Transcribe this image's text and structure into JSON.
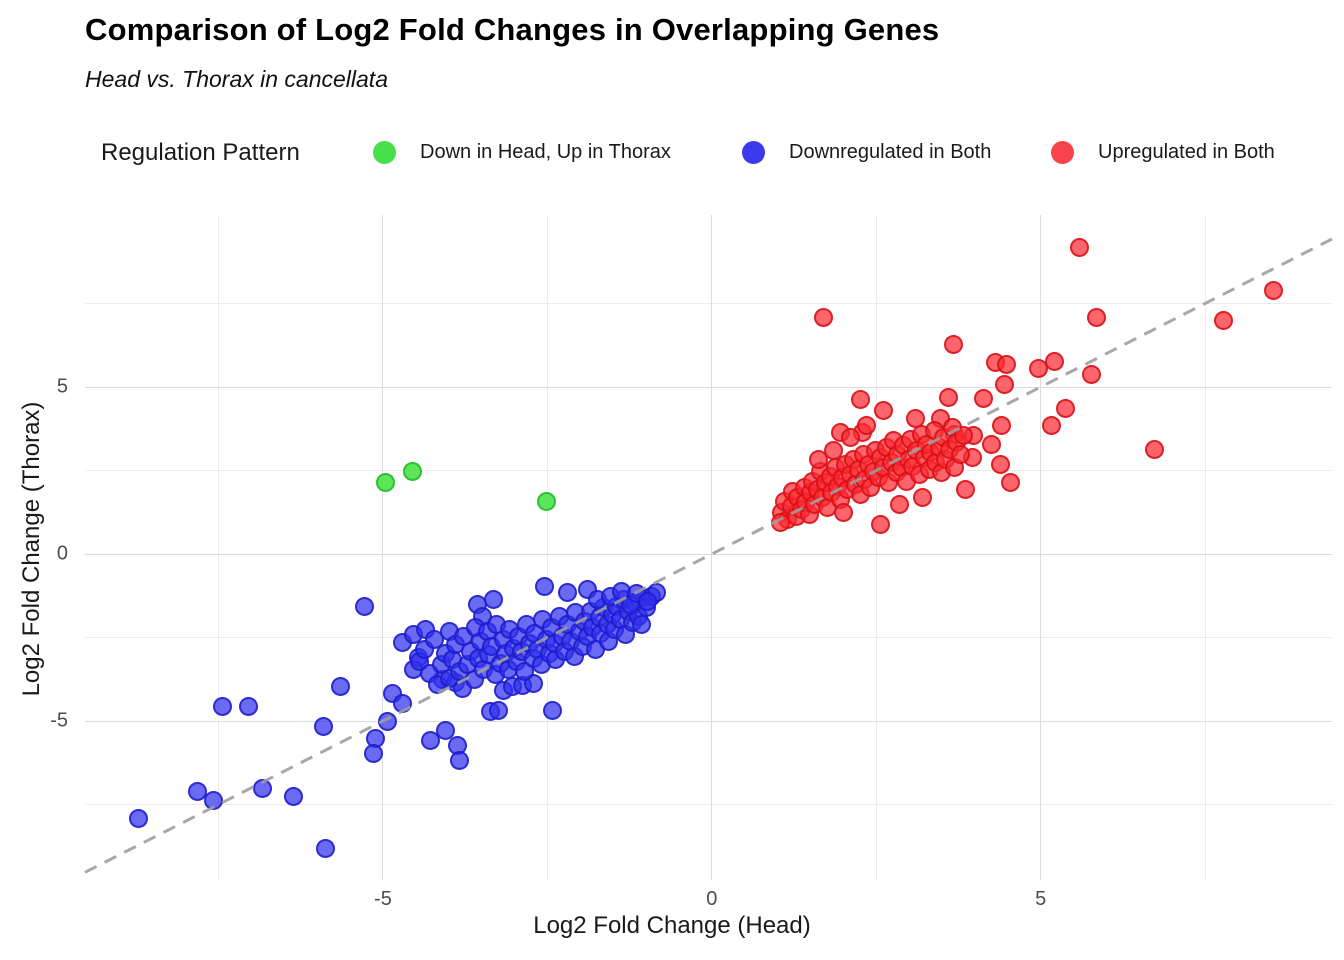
{
  "title": "Comparison of Log2 Fold Changes in Overlapping Genes",
  "subtitle": "Head vs. Thorax in cancellata",
  "legend": {
    "title": "Regulation Pattern",
    "items": [
      {
        "label": "Down in Head, Up in Thorax",
        "color": "#45e04a"
      },
      {
        "label": "Downregulated in Both",
        "color": "#3a3aec"
      },
      {
        "label": "Upregulated in Both",
        "color": "#f8434a"
      }
    ]
  },
  "chart_data": {
    "type": "scatter",
    "title": "Comparison of Log2 Fold Changes in Overlapping Genes",
    "subtitle": "Head vs. Thorax in cancellata",
    "xlabel": "Log2 Fold Change (Head)",
    "ylabel": "Log2 Fold Change (Thorax)",
    "xlim": [
      -9.53,
      9.43
    ],
    "ylim": [
      -9.76,
      10.15
    ],
    "grid": "on",
    "legend_position": "top",
    "x_ticks_major": [
      -5,
      0,
      5
    ],
    "x_tick_labels": [
      "-5",
      "0",
      "5"
    ],
    "x_ticks_minor": [
      -7.5,
      -2.5,
      2.5,
      7.5
    ],
    "y_ticks_major": [
      5,
      0,
      -5
    ],
    "y_tick_labels": [
      "5",
      "0",
      "-5"
    ],
    "y_ticks_minor": [
      7.5,
      2.5,
      -2.5,
      -7.5
    ],
    "reference_line": {
      "type": "identity",
      "slope": 1,
      "intercept": 0,
      "style": "dashed",
      "color": "#9e9e9e"
    },
    "colors": {
      "major_grid": "#dcdcdc",
      "minor_grid": "#ececec",
      "tick_text": "#4d4d4d"
    },
    "series": [
      {
        "name": "Down in Head, Up in Thorax",
        "fill": "rgba(74,227,74,0.9)",
        "stroke": "rgba(40,190,45,0.95)",
        "points": [
          [
            -4.97,
            2.15
          ],
          [
            -4.56,
            2.5
          ],
          [
            -2.52,
            1.6
          ]
        ]
      },
      {
        "name": "Downregulated in Both",
        "fill": "rgba(48,48,238,0.72)",
        "stroke": "rgba(26,26,200,0.8)",
        "points": [
          [
            -8.72,
            -7.9
          ],
          [
            -7.83,
            -7.1
          ],
          [
            -7.58,
            -7.37
          ],
          [
            -7.45,
            -4.55
          ],
          [
            -7.05,
            -4.55
          ],
          [
            -6.84,
            -7.0
          ],
          [
            -6.37,
            -7.25
          ],
          [
            -5.91,
            -5.15
          ],
          [
            -5.88,
            -8.8
          ],
          [
            -5.65,
            -3.95
          ],
          [
            -5.29,
            -1.57
          ],
          [
            -5.12,
            -5.51
          ],
          [
            -5.15,
            -5.96
          ],
          [
            -4.94,
            -5.0
          ],
          [
            -4.86,
            -4.16
          ],
          [
            -4.71,
            -4.46
          ],
          [
            -4.29,
            -5.57
          ],
          [
            -4.06,
            -5.27
          ],
          [
            -3.88,
            -5.72
          ],
          [
            -3.85,
            -6.17
          ],
          [
            -2.43,
            -4.67
          ],
          [
            -4.71,
            -2.62
          ],
          [
            -4.54,
            -2.38
          ],
          [
            -4.36,
            -2.26
          ],
          [
            -4.47,
            -3.07
          ],
          [
            -4.54,
            -3.43
          ],
          [
            -4.1,
            -3.73
          ],
          [
            -3.9,
            -3.83
          ],
          [
            -3.57,
            -1.51
          ],
          [
            -3.33,
            -1.36
          ],
          [
            -3.5,
            -1.87
          ],
          [
            -3.37,
            -4.7
          ],
          [
            -3.25,
            -4.67
          ],
          [
            -3.18,
            -4.07
          ],
          [
            -3.04,
            -3.95
          ],
          [
            -2.89,
            -3.92
          ],
          [
            -2.72,
            -3.86
          ],
          [
            -4.45,
            -3.2
          ],
          [
            -4.38,
            -2.85
          ],
          [
            -4.3,
            -3.55
          ],
          [
            -4.22,
            -2.55
          ],
          [
            -4.18,
            -3.9
          ],
          [
            -4.12,
            -3.3
          ],
          [
            -4.05,
            -2.95
          ],
          [
            -4.0,
            -3.7
          ],
          [
            -4.0,
            -2.3
          ],
          [
            -3.95,
            -3.15
          ],
          [
            -3.9,
            -2.7
          ],
          [
            -3.85,
            -3.5
          ],
          [
            -3.8,
            -4.0
          ],
          [
            -3.78,
            -2.45
          ],
          [
            -3.72,
            -3.3
          ],
          [
            -3.68,
            -2.9
          ],
          [
            -3.62,
            -3.75
          ],
          [
            -3.6,
            -2.2
          ],
          [
            -3.55,
            -3.1
          ],
          [
            -3.52,
            -2.6
          ],
          [
            -3.48,
            -3.45
          ],
          [
            -3.42,
            -2.3
          ],
          [
            -3.4,
            -3.0
          ],
          [
            -3.35,
            -2.75
          ],
          [
            -3.3,
            -3.6
          ],
          [
            -3.28,
            -2.1
          ],
          [
            -3.22,
            -3.25
          ],
          [
            -3.18,
            -2.55
          ],
          [
            -3.15,
            -2.95
          ],
          [
            -3.1,
            -3.45
          ],
          [
            -3.08,
            -2.25
          ],
          [
            -3.02,
            -2.8
          ],
          [
            -2.98,
            -3.2
          ],
          [
            -2.95,
            -2.45
          ],
          [
            -2.9,
            -2.9
          ],
          [
            -2.85,
            -3.5
          ],
          [
            -2.82,
            -2.1
          ],
          [
            -2.78,
            -2.65
          ],
          [
            -2.72,
            -3.1
          ],
          [
            -2.7,
            -2.35
          ],
          [
            -2.65,
            -2.85
          ],
          [
            -2.6,
            -3.3
          ],
          [
            -2.58,
            -1.95
          ],
          [
            -2.52,
            -2.55
          ],
          [
            -2.48,
            -2.95
          ],
          [
            -2.45,
            -2.2
          ],
          [
            -2.4,
            -2.65
          ],
          [
            -2.38,
            -3.15
          ],
          [
            -2.32,
            -1.85
          ],
          [
            -2.28,
            -2.45
          ],
          [
            -2.25,
            -2.9
          ],
          [
            -2.2,
            -2.1
          ],
          [
            -2.15,
            -2.6
          ],
          [
            -2.1,
            -3.05
          ],
          [
            -2.08,
            -1.75
          ],
          [
            -2.02,
            -2.3
          ],
          [
            -1.98,
            -2.75
          ],
          [
            -1.95,
            -2.0
          ],
          [
            -1.9,
            -2.45
          ],
          [
            -1.85,
            -1.7
          ],
          [
            -1.82,
            -2.2
          ],
          [
            -1.78,
            -2.85
          ],
          [
            -1.72,
            -1.9
          ],
          [
            -1.7,
            -2.35
          ],
          [
            -1.65,
            -1.6
          ],
          [
            -1.6,
            -2.1
          ],
          [
            -1.58,
            -2.6
          ],
          [
            -1.52,
            -1.8
          ],
          [
            -1.48,
            -2.25
          ],
          [
            -1.45,
            -1.55
          ],
          [
            -1.4,
            -1.95
          ],
          [
            -1.35,
            -1.35
          ],
          [
            -1.32,
            -2.4
          ],
          [
            -1.28,
            -1.7
          ],
          [
            -1.22,
            -2.05
          ],
          [
            -1.18,
            -1.45
          ],
          [
            -1.12,
            -1.85
          ],
          [
            -1.05,
            -1.3
          ],
          [
            -1.0,
            -1.6
          ],
          [
            -0.92,
            -1.25
          ],
          [
            -2.55,
            -0.95
          ],
          [
            -1.9,
            -1.05
          ],
          [
            -2.2,
            -1.15
          ],
          [
            -0.85,
            -1.15
          ],
          [
            -1.75,
            -1.35
          ],
          [
            -1.55,
            -1.25
          ],
          [
            -1.38,
            -1.12
          ],
          [
            -1.25,
            -1.5
          ],
          [
            -1.15,
            -1.18
          ],
          [
            -1.08,
            -2.1
          ],
          [
            -0.98,
            -1.4
          ]
        ]
      },
      {
        "name": "Upregulated in Both",
        "fill": "rgba(251,42,50,0.72)",
        "stroke": "rgba(214,12,20,0.8)",
        "points": [
          [
            5.58,
            9.2
          ],
          [
            8.53,
            7.9
          ],
          [
            7.77,
            7.0
          ],
          [
            5.84,
            7.1
          ],
          [
            1.69,
            7.1
          ],
          [
            3.66,
            6.3
          ],
          [
            4.3,
            5.75
          ],
          [
            4.48,
            5.7
          ],
          [
            4.96,
            5.57
          ],
          [
            5.21,
            5.78
          ],
          [
            5.77,
            5.4
          ],
          [
            4.45,
            5.1
          ],
          [
            3.59,
            4.7
          ],
          [
            4.12,
            4.67
          ],
          [
            2.26,
            4.63
          ],
          [
            5.37,
            4.37
          ],
          [
            5.16,
            3.85
          ],
          [
            3.47,
            4.07
          ],
          [
            3.09,
            4.06
          ],
          [
            2.6,
            4.3
          ],
          [
            3.69,
            3.6
          ],
          [
            3.97,
            3.55
          ],
          [
            4.25,
            3.3
          ],
          [
            4.4,
            3.85
          ],
          [
            6.72,
            3.13
          ],
          [
            1.95,
            3.65
          ],
          [
            2.29,
            3.64
          ],
          [
            4.38,
            2.7
          ],
          [
            4.53,
            2.15
          ],
          [
            3.85,
            1.95
          ],
          [
            3.95,
            2.9
          ],
          [
            1.05,
            1.25
          ],
          [
            1.1,
            1.6
          ],
          [
            1.15,
            1.05
          ],
          [
            1.2,
            1.45
          ],
          [
            1.22,
            1.9
          ],
          [
            1.28,
            1.15
          ],
          [
            1.3,
            1.7
          ],
          [
            1.35,
            1.35
          ],
          [
            1.4,
            2.0
          ],
          [
            1.42,
            1.55
          ],
          [
            1.48,
            1.2
          ],
          [
            1.5,
            1.85
          ],
          [
            1.52,
            2.2
          ],
          [
            1.55,
            1.5
          ],
          [
            1.6,
            1.95
          ],
          [
            1.65,
            2.5
          ],
          [
            1.68,
            1.7
          ],
          [
            1.72,
            2.15
          ],
          [
            1.75,
            1.4
          ],
          [
            1.8,
            2.35
          ],
          [
            1.82,
            1.85
          ],
          [
            1.88,
            2.6
          ],
          [
            1.9,
            2.05
          ],
          [
            1.95,
            1.65
          ],
          [
            1.98,
            2.3
          ],
          [
            2.02,
            2.7
          ],
          [
            2.05,
            1.95
          ],
          [
            2.1,
            2.4
          ],
          [
            2.15,
            2.85
          ],
          [
            2.18,
            2.1
          ],
          [
            2.22,
            2.55
          ],
          [
            2.25,
            1.8
          ],
          [
            2.3,
            3.0
          ],
          [
            2.32,
            2.25
          ],
          [
            2.38,
            2.7
          ],
          [
            2.4,
            2.0
          ],
          [
            2.45,
            2.5
          ],
          [
            2.48,
            3.1
          ],
          [
            2.52,
            2.3
          ],
          [
            2.55,
            2.9
          ],
          [
            2.6,
            2.6
          ],
          [
            2.65,
            3.2
          ],
          [
            2.68,
            2.15
          ],
          [
            2.72,
            2.75
          ],
          [
            2.75,
            3.4
          ],
          [
            2.8,
            2.45
          ],
          [
            2.82,
            3.0
          ],
          [
            2.88,
            2.6
          ],
          [
            2.9,
            3.25
          ],
          [
            2.95,
            2.2
          ],
          [
            2.98,
            2.85
          ],
          [
            3.02,
            3.45
          ],
          [
            3.05,
            2.65
          ],
          [
            3.1,
            3.1
          ],
          [
            3.15,
            2.4
          ],
          [
            3.18,
            3.6
          ],
          [
            3.22,
            2.9
          ],
          [
            3.25,
            3.3
          ],
          [
            3.3,
            2.55
          ],
          [
            3.32,
            3.05
          ],
          [
            3.38,
            3.7
          ],
          [
            3.4,
            2.75
          ],
          [
            3.45,
            3.2
          ],
          [
            3.48,
            2.45
          ],
          [
            3.52,
            3.5
          ],
          [
            3.55,
            2.85
          ],
          [
            3.6,
            3.15
          ],
          [
            3.65,
            3.8
          ],
          [
            3.68,
            2.6
          ],
          [
            3.72,
            3.35
          ],
          [
            3.78,
            3.0
          ],
          [
            3.82,
            3.55
          ],
          [
            2.55,
            0.9
          ],
          [
            2.0,
            1.25
          ],
          [
            2.85,
            1.5
          ],
          [
            3.2,
            1.7
          ],
          [
            1.03,
            0.95
          ],
          [
            1.62,
            2.85
          ],
          [
            1.85,
            3.1
          ],
          [
            2.1,
            3.5
          ],
          [
            2.35,
            3.85
          ]
        ]
      }
    ]
  }
}
